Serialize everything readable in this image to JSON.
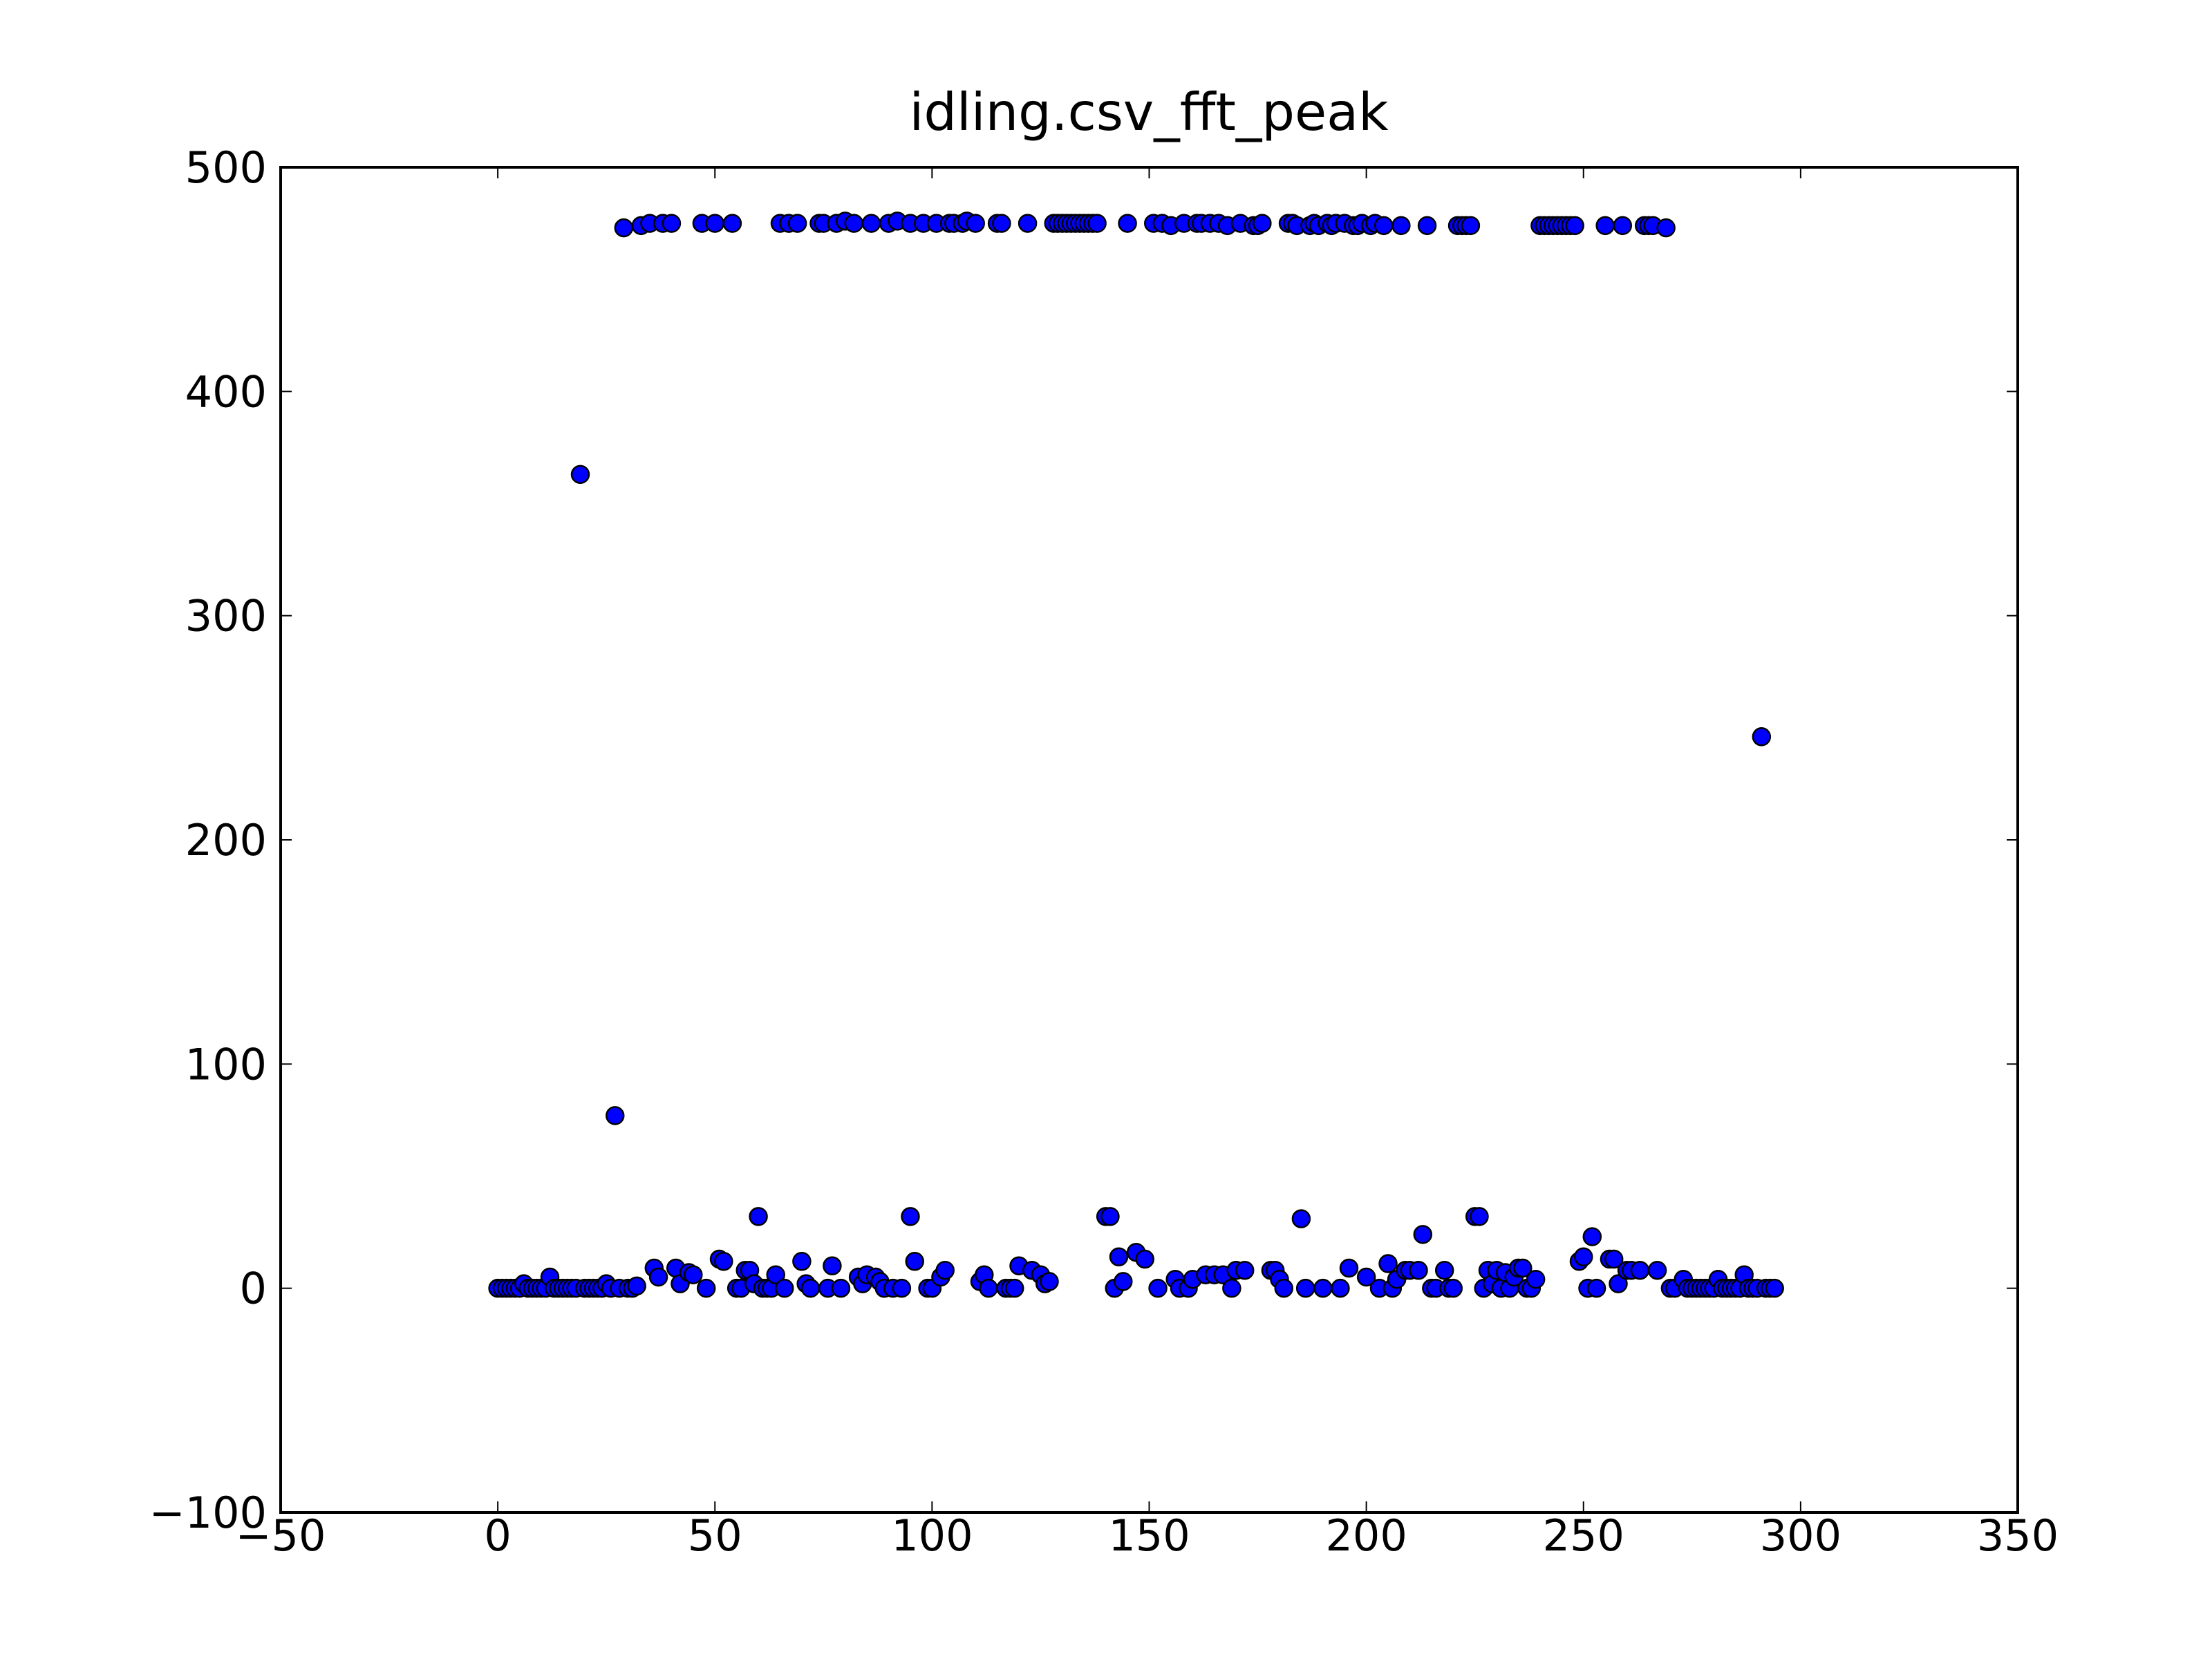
{
  "chart_data": {
    "type": "scatter",
    "title": "idling.csv_fft_peak",
    "color": "#0000ff",
    "edgecolor": "#000000",
    "x": [
      0,
      1,
      2,
      3,
      4,
      5,
      6,
      7,
      8,
      9,
      10,
      11,
      12,
      13,
      14,
      15,
      16,
      17,
      18,
      19,
      20,
      21,
      22,
      23,
      24,
      25,
      26,
      27,
      28,
      29,
      30,
      31,
      32,
      33,
      35,
      36,
      37,
      38,
      40,
      41,
      42,
      44,
      45,
      47,
      48,
      50,
      51,
      52,
      54,
      55,
      56,
      57,
      58,
      59,
      60,
      61,
      62,
      63,
      64,
      65,
      66,
      67,
      69,
      70,
      71,
      72,
      74,
      75,
      76,
      77,
      78,
      79,
      80,
      82,
      83,
      84,
      85,
      86,
      87,
      88,
      89,
      90,
      91,
      92,
      93,
      95,
      95,
      96,
      98,
      99,
      100,
      101,
      102,
      103,
      104,
      105,
      107,
      108,
      110,
      111,
      112,
      113,
      115,
      116,
      117,
      118,
      119,
      120,
      122,
      123,
      125,
      126,
      127,
      128,
      129,
      130,
      131,
      132,
      133,
      134,
      135,
      136,
      137,
      138,
      140,
      141,
      142,
      143,
      144,
      145,
      147,
      149,
      151,
      152,
      153,
      155,
      156,
      157,
      158,
      159,
      160,
      161,
      162,
      163,
      164,
      165,
      166,
      167,
      168,
      169,
      170,
      171,
      172,
      174,
      175,
      176,
      178,
      179,
      180,
      181,
      182,
      183,
      184,
      185,
      186,
      187,
      188,
      189,
      190,
      191,
      192,
      193,
      194,
      195,
      196,
      197,
      198,
      199,
      200,
      201,
      202,
      203,
      204,
      205,
      206,
      207,
      208,
      209,
      210,
      212,
      213,
      214,
      215,
      216,
      218,
      219,
      220,
      221,
      222,
      223,
      224,
      225,
      226,
      227,
      228,
      229,
      230,
      231,
      232,
      233,
      234,
      235,
      236,
      237,
      238,
      239,
      240,
      241,
      242,
      243,
      244,
      245,
      246,
      247,
      248,
      249,
      250,
      251,
      252,
      253,
      255,
      256,
      257,
      258,
      259,
      260,
      261,
      263,
      264,
      265,
      266,
      267,
      269,
      270,
      271,
      273,
      274,
      275,
      276,
      277,
      278,
      279,
      280,
      281,
      282,
      283,
      284,
      285,
      286,
      287,
      288,
      289,
      290,
      291,
      292,
      293,
      294
    ],
    "y": [
      0,
      0,
      0,
      0,
      0,
      0,
      2,
      0,
      0,
      0,
      0,
      0,
      5,
      0,
      0,
      0,
      0,
      0,
      0,
      363,
      0,
      0,
      0,
      0,
      0,
      2,
      0,
      77,
      0,
      473,
      0,
      0,
      1,
      474,
      475,
      9,
      5,
      475,
      475,
      9,
      2,
      7,
      6,
      475,
      0,
      475,
      13,
      12,
      475,
      0,
      0,
      8,
      8,
      2,
      32,
      0,
      0,
      0,
      6,
      475,
      0,
      475,
      475,
      12,
      2,
      0,
      475,
      475,
      0,
      10,
      475,
      0,
      476,
      475,
      5,
      2,
      6,
      475,
      5,
      3,
      0,
      475,
      0,
      476,
      0,
      475,
      32,
      12,
      475,
      0,
      0,
      475,
      5,
      8,
      475,
      475,
      475,
      476,
      475,
      3,
      6,
      0,
      475,
      475,
      0,
      0,
      0,
      10,
      475,
      8,
      6,
      2,
      3,
      475,
      475,
      475,
      475,
      475,
      475,
      475,
      475,
      475,
      475,
      475,
      32,
      32,
      0,
      14,
      3,
      475,
      16,
      13,
      475,
      0,
      475,
      474,
      4,
      0,
      475,
      0,
      4,
      475,
      475,
      6,
      475,
      6,
      475,
      6,
      474,
      0,
      8,
      475,
      8,
      474,
      474,
      475,
      8,
      8,
      4,
      0,
      475,
      475,
      474,
      31,
      0,
      474,
      475,
      474,
      0,
      475,
      474,
      475,
      0,
      475,
      9,
      474,
      474,
      475,
      5,
      474,
      475,
      0,
      474,
      11,
      0,
      4,
      474,
      8,
      8,
      8,
      24,
      474,
      0,
      0,
      8,
      0,
      0,
      474,
      474,
      474,
      474,
      32,
      32,
      0,
      8,
      2,
      8,
      0,
      7,
      0,
      5,
      9,
      9,
      0,
      0,
      4,
      474,
      474,
      474,
      474,
      474,
      474,
      474,
      474,
      474,
      12,
      14,
      0,
      23,
      0,
      474,
      13,
      13,
      2,
      474,
      8,
      8,
      8,
      474,
      474,
      474,
      8,
      473,
      0,
      0,
      4,
      0,
      0,
      0,
      0,
      0,
      0,
      0,
      4,
      0,
      0,
      0,
      0,
      0,
      6,
      0,
      0,
      0,
      246,
      0,
      0,
      0
    ],
    "xlim": [
      -50,
      350
    ],
    "xticks": [
      {
        "value": -50,
        "label": "−50"
      },
      0,
      50,
      100,
      150,
      200,
      250,
      300,
      350
    ],
    "ylim": [
      -100,
      500
    ],
    "yticks": [
      {
        "value": -100,
        "label": "−100"
      },
      0,
      100,
      200,
      300,
      400,
      500
    ],
    "grid": false
  }
}
